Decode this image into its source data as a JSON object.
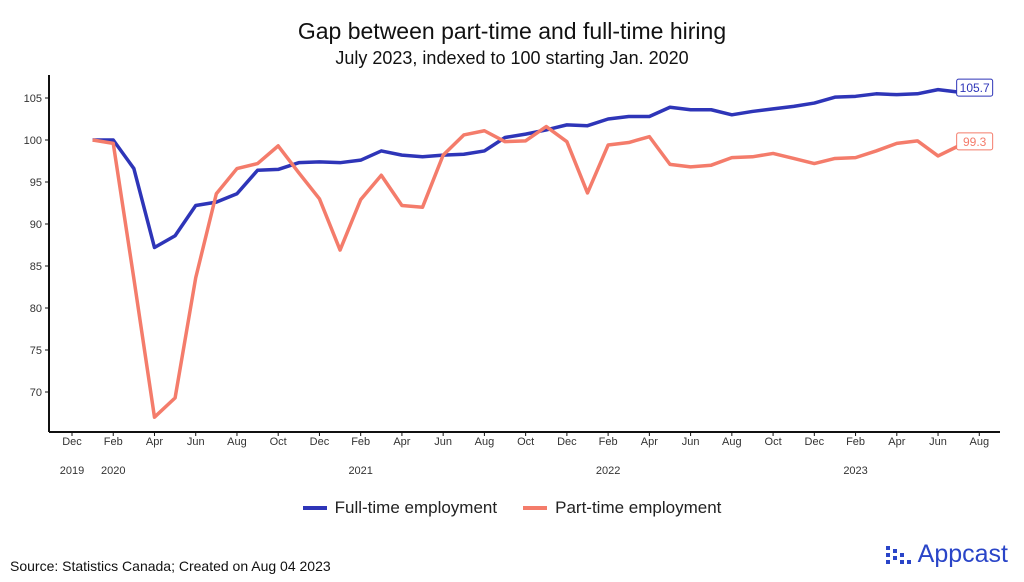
{
  "chart_data": {
    "type": "line",
    "title": "Gap between part-time and full-time hiring",
    "subtitle": "July 2023, indexed to 100 starting Jan. 2020",
    "xlabel": "",
    "ylabel": "",
    "ylim": [
      65,
      108
    ],
    "yticks": [
      70,
      75,
      80,
      85,
      90,
      95,
      100,
      105
    ],
    "xticks": [
      "Dec",
      "Feb",
      "Apr",
      "Jun",
      "Aug",
      "Oct",
      "Dec",
      "Feb",
      "Apr",
      "Jun",
      "Aug",
      "Oct",
      "Dec",
      "Feb",
      "Apr",
      "Jun",
      "Aug",
      "Oct",
      "Dec",
      "Feb",
      "Apr",
      "Jun",
      "Aug"
    ],
    "years": [
      {
        "label": "2019",
        "month": 0
      },
      {
        "label": "2020",
        "month": 2
      },
      {
        "label": "2021",
        "month": 14
      },
      {
        "label": "2022",
        "month": 26
      },
      {
        "label": "2023",
        "month": 38
      }
    ],
    "x_start": "Jan 2020",
    "x_end": "Jul 2023",
    "series": [
      {
        "name": "Full-time employment",
        "color": "#2e35b8",
        "end_label": "105.7",
        "values": [
          100,
          100,
          96.6,
          87.2,
          88.6,
          92.2,
          92.6,
          93.6,
          96.4,
          96.5,
          97.3,
          97.4,
          97.3,
          97.6,
          98.7,
          98.2,
          98.0,
          98.2,
          98.3,
          98.7,
          100.3,
          100.7,
          101.2,
          101.8,
          101.7,
          102.5,
          102.8,
          102.8,
          103.9,
          103.6,
          103.6,
          103.0,
          103.4,
          103.7,
          104.0,
          104.4,
          105.1,
          105.2,
          105.5,
          105.4,
          105.5,
          106.0,
          105.7
        ]
      },
      {
        "name": "Part-time employment",
        "color": "#f47c6b",
        "end_label": "99.3",
        "values": [
          100,
          99.6,
          83.5,
          67.0,
          69.3,
          83.6,
          93.6,
          96.6,
          97.2,
          99.3,
          96.1,
          93.0,
          86.9,
          92.9,
          95.8,
          92.2,
          92.0,
          98.2,
          100.6,
          101.1,
          99.8,
          99.9,
          101.6,
          99.8,
          93.7,
          99.4,
          99.7,
          100.4,
          97.1,
          96.8,
          97.0,
          97.9,
          98.0,
          98.4,
          97.8,
          97.2,
          97.8,
          97.9,
          98.7,
          99.6,
          99.9,
          98.1,
          99.3
        ]
      }
    ],
    "legend": "bottom"
  },
  "source": "Source: Statistics Canada; Created on Aug 04 2023",
  "logo": "Appcast"
}
